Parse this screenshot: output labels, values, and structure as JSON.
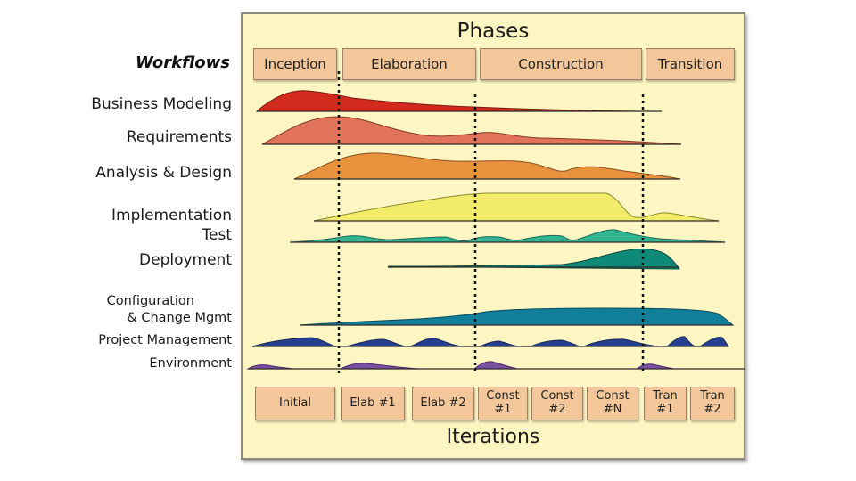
{
  "workflows_title": "Workflows",
  "phases_title": "Phases",
  "iterations_title": "Iterations",
  "phases": [
    "Inception",
    "Elaboration",
    "Construction",
    "Transition"
  ],
  "workflows": [
    "Business Modeling",
    "Requirements",
    "Analysis & Design",
    "Implementation",
    "Test",
    "Deployment",
    "Configuration",
    "& Change Mgmt",
    "Project Management",
    "Environment"
  ],
  "iterations": [
    "Initial",
    "Elab #1",
    "Elab #2",
    "Const\n#1",
    "Const\n#2",
    "Const\n#N",
    "Tran\n#1",
    "Tran\n#2"
  ],
  "colors": {
    "panel_bg": "#fdf5c2",
    "box_fill": "#f4c79a",
    "business_modeling": "#d32a1e",
    "requirements": "#e0735a",
    "analysis_design": "#e8923e",
    "implementation": "#f2ec6a",
    "test": "#2fb58f",
    "deployment": "#0f8a78",
    "config_change": "#117f9a",
    "project_management": "#273f8f",
    "environment": "#7a50a0"
  }
}
